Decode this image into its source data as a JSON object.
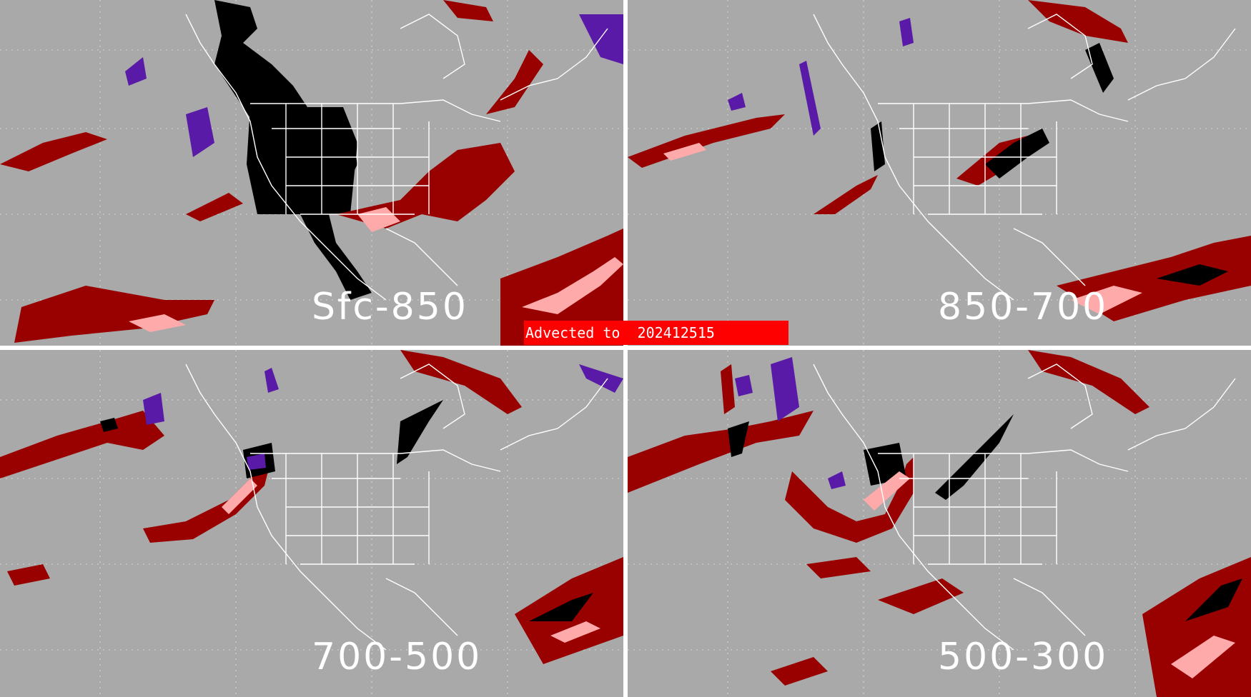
{
  "panels": [
    {
      "label": "Sfc-850"
    },
    {
      "label": "850-700"
    },
    {
      "label": "700-500"
    },
    {
      "label": "500-300"
    }
  ],
  "banner": {
    "prefix": "Advected to",
    "timestamp": "202412515"
  },
  "colors": {
    "background": "#a9a9a9",
    "divider": "#ffffff",
    "boundary": "#ffffff",
    "dark_red": "#990000",
    "pink": "#ffaaaa",
    "black": "#000000",
    "purple": "#5a1aa8",
    "banner": "#ff0000"
  }
}
